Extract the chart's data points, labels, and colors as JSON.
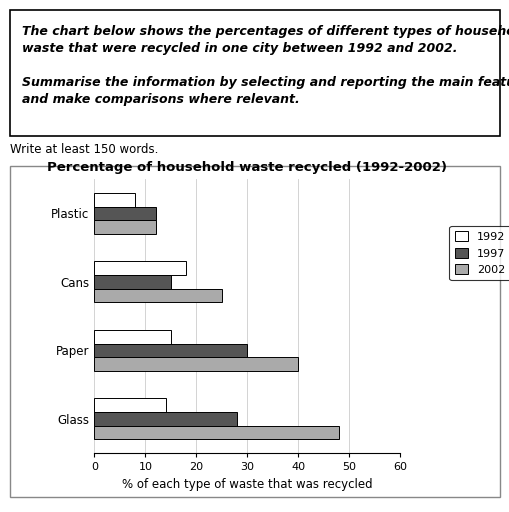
{
  "title": "Percentage of household waste recycled (1992-2002)",
  "categories": [
    "Plastic",
    "Cans",
    "Paper",
    "Glass"
  ],
  "years": [
    "1992",
    "1997",
    "2002"
  ],
  "values": {
    "Plastic": [
      8,
      12,
      12
    ],
    "Cans": [
      18,
      15,
      25
    ],
    "Paper": [
      15,
      30,
      40
    ],
    "Glass": [
      14,
      28,
      48
    ]
  },
  "bar_colors": [
    "#ffffff",
    "#555555",
    "#aaaaaa"
  ],
  "bar_edgecolors": [
    "#000000",
    "#000000",
    "#000000"
  ],
  "bar_hatches": [
    "",
    "",
    ""
  ],
  "xlabel": "% of each type of waste that was recycled",
  "xlim": [
    0,
    60
  ],
  "xticks": [
    0,
    10,
    20,
    30,
    40,
    50,
    60
  ],
  "header_line1": "The chart below shows the percentages of different types of household",
  "header_line2": "waste that were recycled in one city between 1992 and 2002.",
  "header_line3": "",
  "header_line4": "Summarise the information by selecting and reporting the main features,",
  "header_line5": "and make comparisons where relevant.",
  "subtext": "Write at least 150 words.",
  "title_fontsize": 9.5,
  "axis_fontsize": 8.5,
  "tick_fontsize": 8,
  "legend_fontsize": 8,
  "header_fontsize": 9,
  "subtext_fontsize": 8.5
}
